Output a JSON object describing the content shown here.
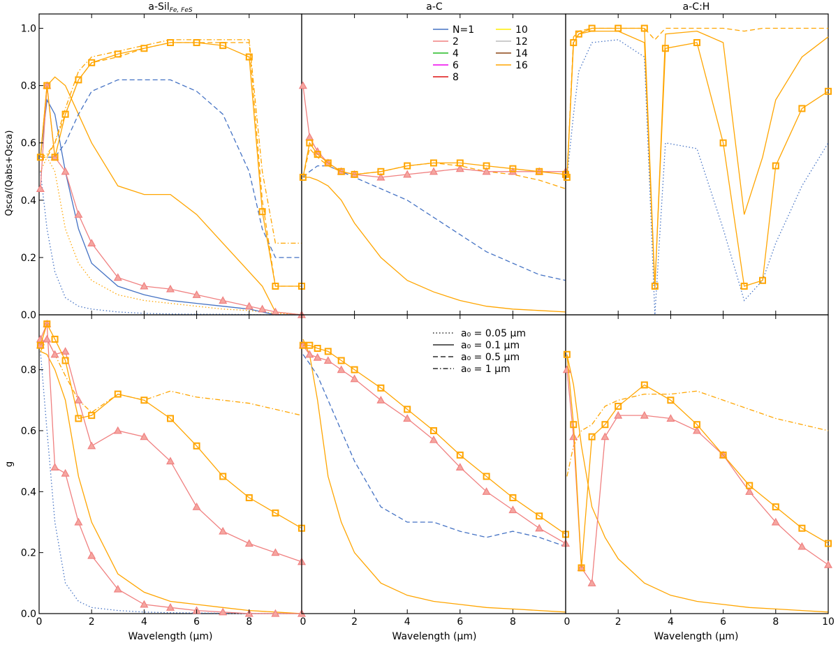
{
  "figure": {
    "columns": [
      "a-Sil",
      "a-C",
      "a-C:H"
    ],
    "column_subscript": "Fe, FeS",
    "rows": [
      {
        "ylabel_main": "Q",
        "ylabel_full": "Qsca/(Qabs+Qsca)",
        "id": "ratio"
      },
      {
        "ylabel_main": "g",
        "ylabel_full": "g",
        "id": "g"
      }
    ],
    "xlabel": "Wavelength (μm)",
    "x_ticks": [
      "0",
      "2",
      "4",
      "6",
      "8",
      "0"
    ],
    "x_ticks_last": [
      "0",
      "2",
      "4",
      "6",
      "8",
      "10"
    ],
    "top_y_ticks": [
      "0.0",
      "0.2",
      "0.4",
      "0.6",
      "0.8",
      "1.0"
    ],
    "bottom_y_ticks": [
      "0.0",
      "0.2",
      "0.4",
      "0.6",
      "0.8"
    ]
  },
  "legend_N": {
    "entries": [
      {
        "label": "N=1",
        "color": "#4472c4"
      },
      {
        "label": "2",
        "color": "#f08080"
      },
      {
        "label": "4",
        "color": "#22bb22"
      },
      {
        "label": "6",
        "color": "#ee00ee"
      },
      {
        "label": "8",
        "color": "#dd1111"
      },
      {
        "label": "10",
        "color": "#ffee00"
      },
      {
        "label": "12",
        "color": "#bbbbbb"
      },
      {
        "label": "14",
        "color": "#8b4513"
      },
      {
        "label": "16",
        "color": "#ffa500"
      }
    ]
  },
  "legend_a0": {
    "entries": [
      {
        "label": "a₀ = 0.05 μm",
        "dash": "1.5,3"
      },
      {
        "label": "a₀ = 0.1 μm",
        "dash": ""
      },
      {
        "label": "a₀ = 0.5 μm",
        "dash": "7,4"
      },
      {
        "label": "a₀ = 1 μm",
        "dash": "7,3,1.5,3"
      }
    ]
  },
  "chart_data": [
    {
      "type": "line",
      "panel": "a-Sil Qsca/(Qabs+Qsca)",
      "xlim": [
        0,
        10
      ],
      "ylim": [
        0,
        1.05
      ],
      "x": [
        0.05,
        0.3,
        0.6,
        1,
        1.5,
        2,
        3,
        4,
        5,
        6,
        7,
        8,
        8.5,
        9,
        10
      ],
      "series": [
        {
          "name": "N=1 a0=0.05",
          "values": [
            0.5,
            0.3,
            0.15,
            0.06,
            0.03,
            0.02,
            0.01,
            0.005,
            0.003,
            0.002,
            0.002,
            0.001,
            0,
            0,
            0
          ]
        },
        {
          "name": "N=16 a0=0.05",
          "values": [
            0.5,
            0.55,
            0.5,
            0.3,
            0.18,
            0.12,
            0.07,
            0.05,
            0.04,
            0.03,
            0.02,
            0.015,
            0.01,
            0.005,
            0
          ]
        },
        {
          "name": "N=1 a0=0.1",
          "values": [
            0.55,
            0.75,
            0.7,
            0.5,
            0.3,
            0.18,
            0.1,
            0.07,
            0.05,
            0.04,
            0.03,
            0.02,
            0.01,
            0,
            0
          ]
        },
        {
          "name": "N=16 a0=0.1",
          "values": [
            0.55,
            0.8,
            0.83,
            0.8,
            0.7,
            0.6,
            0.45,
            0.42,
            0.42,
            0.35,
            0.25,
            0.15,
            0.1,
            0.01,
            0
          ]
        },
        {
          "name": "N=1 a0=0.5",
          "values": [
            0.55,
            0.55,
            0.55,
            0.6,
            0.7,
            0.78,
            0.82,
            0.82,
            0.82,
            0.78,
            0.7,
            0.5,
            0.3,
            0.2,
            0.2
          ]
        },
        {
          "name": "N=16 a0=0.5",
          "values": [
            0.55,
            0.55,
            0.6,
            0.7,
            0.82,
            0.88,
            0.9,
            0.93,
            0.95,
            0.95,
            0.95,
            0.95,
            0.4,
            0.1,
            0.1
          ]
        },
        {
          "name": "N=16 a0=1",
          "values": [
            0.55,
            0.56,
            0.6,
            0.72,
            0.85,
            0.9,
            0.92,
            0.94,
            0.96,
            0.96,
            0.96,
            0.96,
            0.5,
            0.25,
            0.25
          ]
        },
        {
          "name": "triangles",
          "values": [
            0.44,
            0.8,
            0.55,
            0.5,
            0.35,
            0.25,
            0.13,
            0.1,
            0.09,
            0.07,
            0.05,
            0.03,
            0.02,
            0.01,
            0
          ]
        },
        {
          "name": "squares",
          "values": [
            0.55,
            0.8,
            0.55,
            0.7,
            0.82,
            0.88,
            0.91,
            0.93,
            0.95,
            0.95,
            0.94,
            0.9,
            0.36,
            0.1,
            0.1
          ]
        }
      ]
    },
    {
      "type": "line",
      "panel": "a-C Qsca/(Qabs+Qsca)",
      "xlim": [
        0,
        10
      ],
      "ylim": [
        0,
        1.05
      ],
      "x": [
        0.05,
        0.3,
        0.6,
        1,
        1.5,
        2,
        3,
        4,
        5,
        6,
        7,
        8,
        9,
        10
      ],
      "series": [
        {
          "name": "N=16 a0=0.1",
          "values": [
            0.48,
            0.48,
            0.47,
            0.45,
            0.4,
            0.32,
            0.2,
            0.12,
            0.08,
            0.05,
            0.03,
            0.02,
            0.015,
            0.01
          ]
        },
        {
          "name": "N=1 a0=0.5",
          "values": [
            0.48,
            0.5,
            0.52,
            0.52,
            0.5,
            0.48,
            0.44,
            0.4,
            0.34,
            0.28,
            0.22,
            0.18,
            0.14,
            0.12
          ]
        },
        {
          "name": "N=16 a0=0.5",
          "values": [
            0.48,
            0.58,
            0.55,
            0.52,
            0.5,
            0.49,
            0.5,
            0.52,
            0.53,
            0.52,
            0.5,
            0.49,
            0.47,
            0.44
          ]
        },
        {
          "name": "triangles",
          "values": [
            0.8,
            0.62,
            0.57,
            0.53,
            0.5,
            0.49,
            0.48,
            0.49,
            0.5,
            0.51,
            0.5,
            0.5,
            0.5,
            0.5
          ]
        },
        {
          "name": "squares",
          "values": [
            0.48,
            0.6,
            0.56,
            0.53,
            0.5,
            0.49,
            0.5,
            0.52,
            0.53,
            0.53,
            0.52,
            0.51,
            0.5,
            0.49
          ]
        }
      ]
    },
    {
      "type": "line",
      "panel": "a-C:H Qsca/(Qabs+Qsca)",
      "xlim": [
        0,
        10
      ],
      "ylim": [
        0,
        1.05
      ],
      "x": [
        0.05,
        0.3,
        0.5,
        1,
        2,
        3,
        3.4,
        3.8,
        5,
        6,
        6.8,
        7.5,
        8,
        9,
        10
      ],
      "series": [
        {
          "name": "N=16 a0=0.5",
          "values": [
            0.48,
            0.97,
            0.99,
            1,
            1,
            1,
            0.96,
            1,
            1,
            1,
            0.99,
            1,
            1,
            1,
            1
          ]
        },
        {
          "name": "N=16 a0=0.1",
          "values": [
            0.48,
            0.95,
            0.98,
            0.99,
            0.99,
            0.95,
            0.09,
            0.98,
            0.99,
            0.95,
            0.35,
            0.55,
            0.75,
            0.9,
            0.97
          ]
        },
        {
          "name": "N=1 a0=0.05",
          "values": [
            0.48,
            0.7,
            0.85,
            0.95,
            0.96,
            0.9,
            0.0,
            0.6,
            0.58,
            0.3,
            0.05,
            0.12,
            0.25,
            0.45,
            0.6
          ]
        },
        {
          "name": "squares",
          "values": [
            0.48,
            0.95,
            0.98,
            1,
            1,
            1,
            0.1,
            0.93,
            0.95,
            0.6,
            0.1,
            0.12,
            0.52,
            0.72,
            0.78
          ]
        }
      ]
    },
    {
      "type": "line",
      "panel": "a-Sil g",
      "xlim": [
        0,
        10
      ],
      "ylim": [
        0,
        0.98
      ],
      "x": [
        0.05,
        0.3,
        0.6,
        1,
        1.5,
        2,
        3,
        4,
        5,
        6,
        7,
        8,
        9,
        10
      ],
      "series": [
        {
          "name": "N=1 a0=0.05",
          "values": [
            0.86,
            0.6,
            0.3,
            0.1,
            0.04,
            0.02,
            0.01,
            0.005,
            0.003,
            0.002,
            0.001,
            0,
            0,
            0
          ]
        },
        {
          "name": "N=16 a0=0.1",
          "values": [
            0.86,
            0.85,
            0.8,
            0.7,
            0.45,
            0.3,
            0.13,
            0.07,
            0.04,
            0.03,
            0.02,
            0.01,
            0.005,
            0
          ]
        },
        {
          "name": "N=16 a0=1",
          "values": [
            0.86,
            0.9,
            0.85,
            0.78,
            0.7,
            0.66,
            0.72,
            0.7,
            0.73,
            0.71,
            0.7,
            0.69,
            0.67,
            0.65
          ]
        },
        {
          "name": "triangles",
          "values": [
            0.9,
            0.95,
            0.48,
            0.46,
            0.3,
            0.19,
            0.08,
            0.03,
            0.02,
            0.01,
            0.005,
            0,
            0,
            0
          ]
        },
        {
          "name": "triangles a0=1",
          "values": [
            0.88,
            0.9,
            0.85,
            0.86,
            0.7,
            0.55,
            0.6,
            0.58,
            0.5,
            0.35,
            0.27,
            0.23,
            0.2,
            0.17
          ]
        },
        {
          "name": "squares",
          "values": [
            0.88,
            0.95,
            0.9,
            0.83,
            0.64,
            0.65,
            0.72,
            0.7,
            0.64,
            0.55,
            0.45,
            0.38,
            0.33,
            0.28
          ]
        }
      ]
    },
    {
      "type": "line",
      "panel": "a-C g",
      "xlim": [
        0,
        10
      ],
      "ylim": [
        0,
        0.98
      ],
      "x": [
        0.05,
        0.3,
        0.6,
        1,
        1.5,
        2,
        3,
        4,
        5,
        6,
        7,
        8,
        9,
        10
      ],
      "series": [
        {
          "name": "N=16 a0=0.1",
          "values": [
            0.9,
            0.85,
            0.7,
            0.45,
            0.3,
            0.2,
            0.1,
            0.06,
            0.04,
            0.03,
            0.02,
            0.015,
            0.01,
            0.005
          ]
        },
        {
          "name": "N=1 a0=0.5",
          "values": [
            0.85,
            0.82,
            0.78,
            0.7,
            0.6,
            0.5,
            0.35,
            0.3,
            0.3,
            0.27,
            0.25,
            0.27,
            0.25,
            0.22
          ]
        },
        {
          "name": "triangles",
          "values": [
            0.88,
            0.85,
            0.84,
            0.83,
            0.8,
            0.77,
            0.7,
            0.64,
            0.57,
            0.48,
            0.4,
            0.34,
            0.28,
            0.23
          ]
        },
        {
          "name": "squares",
          "values": [
            0.88,
            0.88,
            0.87,
            0.86,
            0.83,
            0.8,
            0.74,
            0.67,
            0.6,
            0.52,
            0.45,
            0.38,
            0.32,
            0.26
          ]
        }
      ]
    },
    {
      "type": "line",
      "panel": "a-C:H g",
      "xlim": [
        0,
        10
      ],
      "ylim": [
        0,
        0.98
      ],
      "x": [
        0.05,
        0.3,
        0.6,
        1,
        1.5,
        2,
        3,
        4,
        5,
        6,
        7,
        8,
        9,
        10
      ],
      "series": [
        {
          "name": "N=16 a0=0.1",
          "values": [
            0.85,
            0.75,
            0.55,
            0.35,
            0.25,
            0.18,
            0.1,
            0.06,
            0.04,
            0.03,
            0.02,
            0.015,
            0.01,
            0.005
          ]
        },
        {
          "name": "N=16 a0=1",
          "values": [
            0.45,
            0.55,
            0.6,
            0.62,
            0.68,
            0.7,
            0.72,
            0.72,
            0.73,
            0.7,
            0.67,
            0.64,
            0.62,
            0.6
          ]
        },
        {
          "name": "triangles",
          "values": [
            0.8,
            0.58,
            0.15,
            0.1,
            0.58,
            0.65,
            0.65,
            0.64,
            0.6,
            0.52,
            0.4,
            0.3,
            0.22,
            0.16
          ]
        },
        {
          "name": "squares",
          "values": [
            0.85,
            0.62,
            0.15,
            0.58,
            0.62,
            0.68,
            0.75,
            0.7,
            0.62,
            0.52,
            0.42,
            0.35,
            0.28,
            0.23
          ]
        }
      ]
    }
  ]
}
